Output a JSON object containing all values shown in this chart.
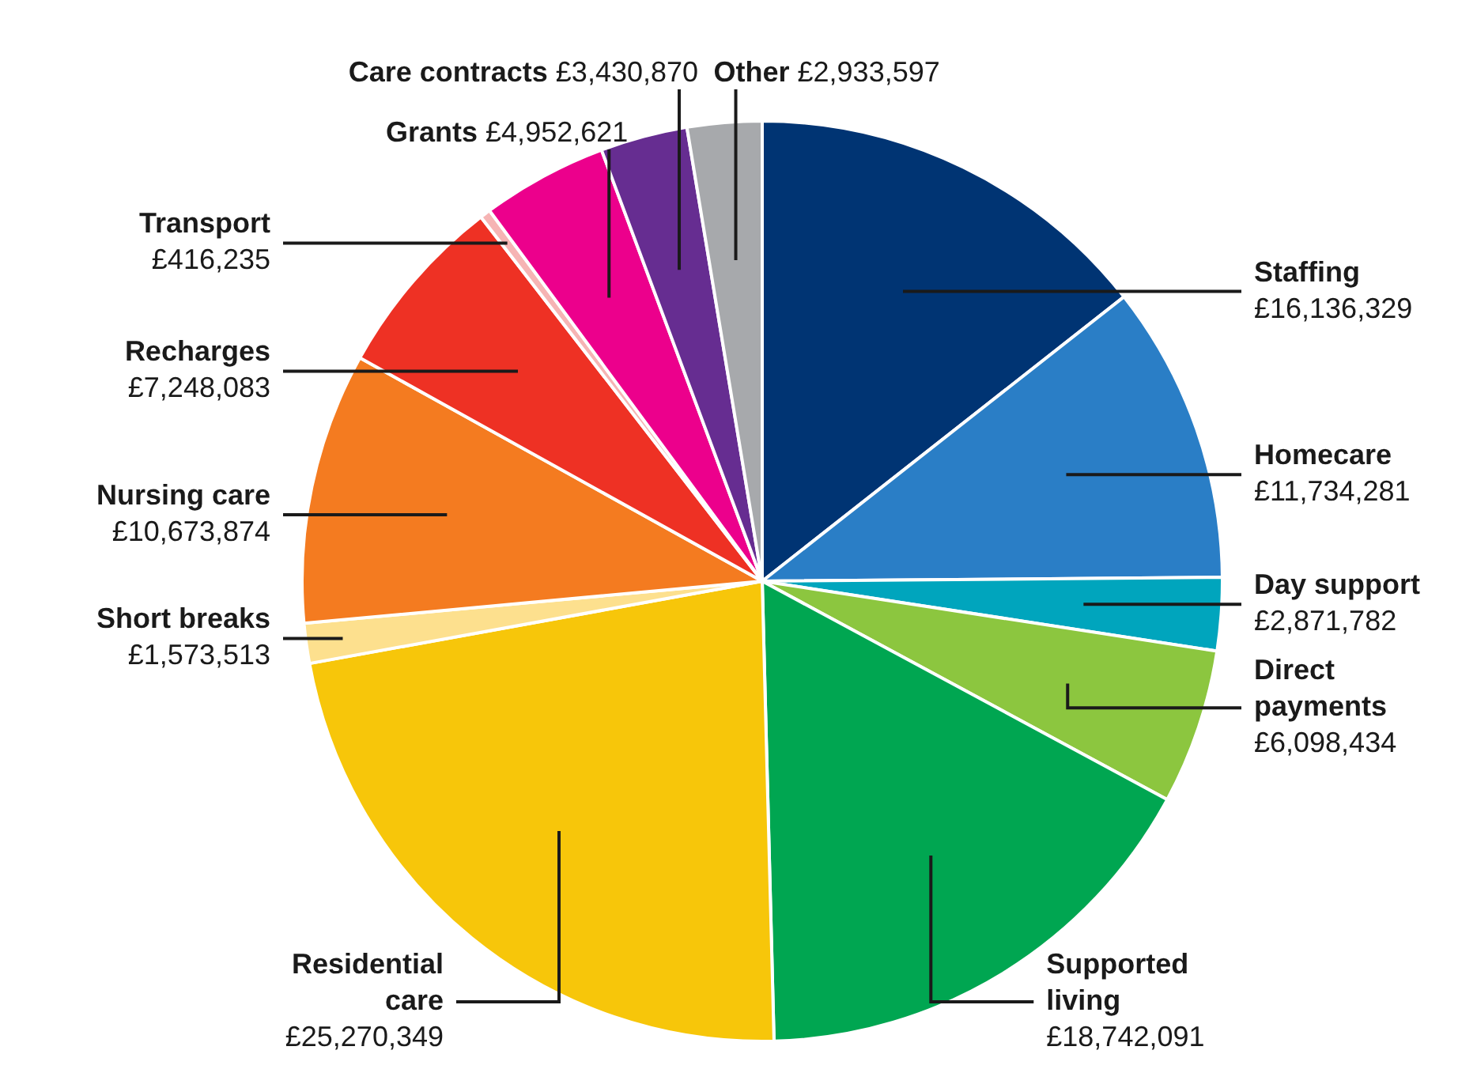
{
  "chart_data": {
    "type": "pie",
    "categories": [
      "Staffing",
      "Homecare",
      "Day support",
      "Direct payments",
      "Supported living",
      "Residential care",
      "Short breaks",
      "Nursing care",
      "Recharges",
      "Transport",
      "Grants",
      "Care contracts",
      "Other"
    ],
    "values": [
      16136329,
      11734281,
      2871782,
      6098434,
      18742091,
      25270349,
      1573513,
      10673874,
      7248083,
      416235,
      4952621,
      3430870,
      2933597
    ],
    "value_labels": [
      "£16,136,329",
      "£11,734,281",
      "£2,871,782",
      "£6,098,434",
      "£18,742,091",
      "£25,270,349",
      "£1,573,513",
      "£10,673,874",
      "£7,248,083",
      "£416,235",
      "£4,952,621",
      "£3,430,870",
      "£2,933,597"
    ],
    "colors": [
      "#003473",
      "#2a7ec6",
      "#00a5bd",
      "#8cc63f",
      "#00a651",
      "#f7c60a",
      "#fde08e",
      "#f47b20",
      "#ee3124",
      "#f6b4b4",
      "#ec008c",
      "#662d91",
      "#a7a9ac"
    ],
    "legend": false
  }
}
